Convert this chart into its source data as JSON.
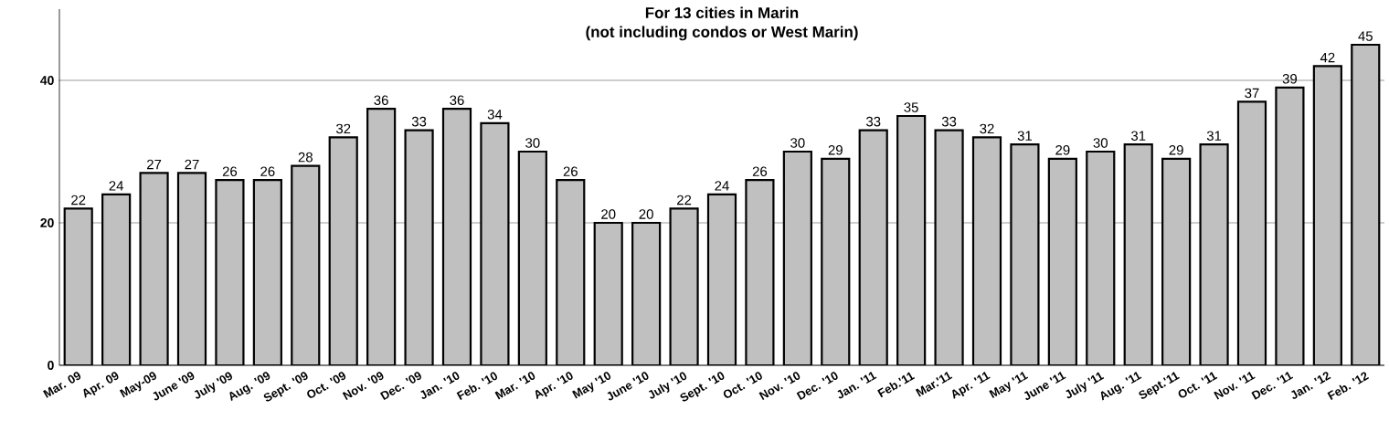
{
  "chart_data": {
    "type": "bar",
    "title": "For 13 cities in Marin",
    "subtitle": "(not including condos or West Marin)",
    "categories": [
      "Mar. 09",
      "Apr. 09",
      "May-09",
      "June '09",
      "July '09",
      "Aug. '09",
      "Sept. '09",
      "Oct. '09",
      "Nov. '09",
      "Dec. '09",
      "Jan. '10",
      "Feb. '10",
      "Mar. '10",
      "Apr. '10",
      "May '10",
      "June '10",
      "July '10",
      "Sept. '10",
      "Oct. '10",
      "Nov. '10",
      "Dec. '10",
      "Jan. '11",
      "Feb.'11",
      "Mar.'11",
      "Apr. '11",
      "May '11",
      "June '11",
      "July '11",
      "Aug. '11",
      "Sept.'11",
      "Oct. '11",
      "Nov. '11",
      "Dec. '11",
      "Jan. '12",
      "Feb. '12"
    ],
    "values": [
      22,
      24,
      27,
      27,
      26,
      26,
      28,
      32,
      36,
      33,
      36,
      34,
      30,
      26,
      20,
      20,
      22,
      24,
      26,
      30,
      29,
      33,
      35,
      33,
      32,
      31,
      29,
      30,
      31,
      29,
      31,
      37,
      39,
      42,
      45
    ],
    "color": "#c0c0c0",
    "ylim": [
      0,
      50
    ],
    "yticks": [
      0,
      20,
      40
    ],
    "grid": "y",
    "data_labels": true
  }
}
